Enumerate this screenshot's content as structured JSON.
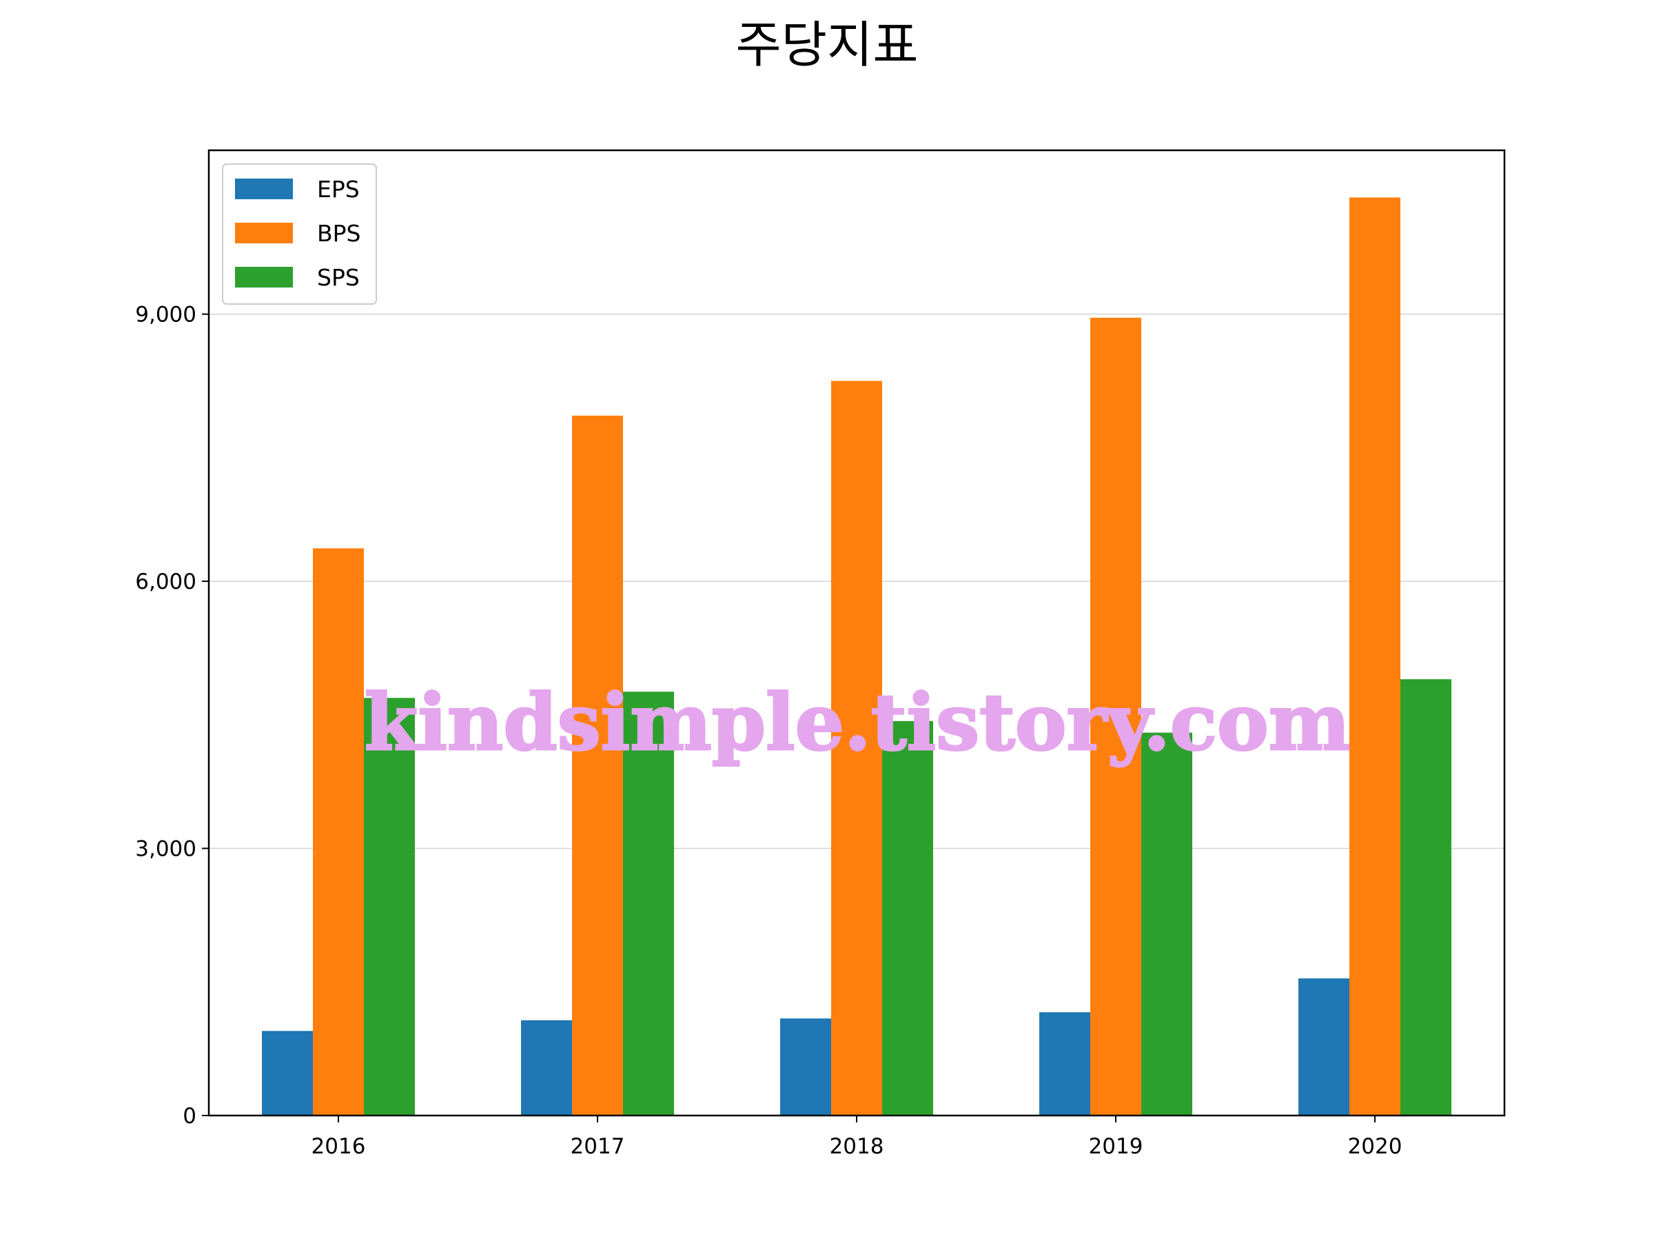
{
  "chart_data": {
    "type": "bar",
    "title": "주당지표",
    "xlabel": "",
    "ylabel": "",
    "categories": [
      "2016",
      "2017",
      "2018",
      "2019",
      "2020"
    ],
    "series": [
      {
        "name": "EPS",
        "color": "#1f77b4",
        "values": [
          950,
          1070,
          1090,
          1160,
          1540
        ]
      },
      {
        "name": "BPS",
        "color": "#ff7f0e",
        "values": [
          6370,
          7860,
          8250,
          8960,
          10310
        ]
      },
      {
        "name": "SPS",
        "color": "#2ca02c",
        "values": [
          4690,
          4760,
          4430,
          4300,
          4900
        ]
      }
    ],
    "ylim": [
      0,
      10840
    ],
    "yticks": [
      0,
      3000,
      6000,
      9000
    ],
    "ytick_labels": [
      "0",
      "3,000",
      "6,000",
      "9,000"
    ],
    "grid": "horizontal",
    "legend_position": "top-left"
  },
  "watermark": "kindsimple.tistory.com"
}
